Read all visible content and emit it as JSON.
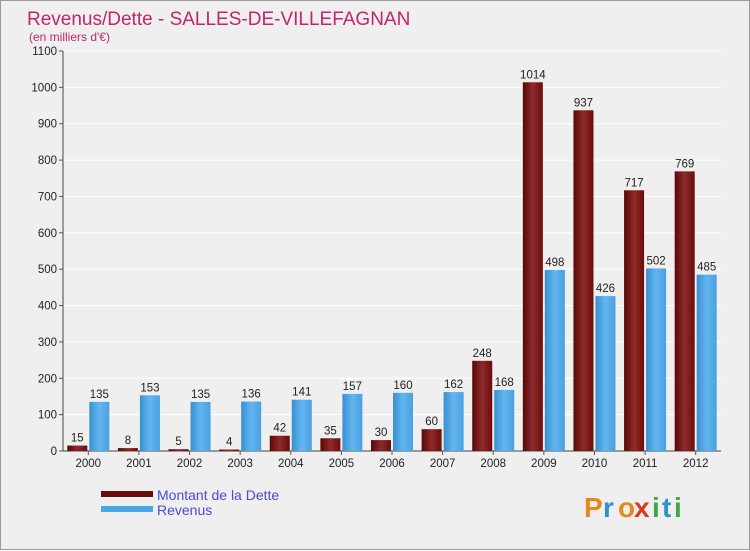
{
  "chart_data": {
    "type": "bar",
    "title": "Revenus/Dette - SALLES-DE-VILLEFAGNAN",
    "subtitle": "(en milliers d'€)",
    "categories": [
      "2000",
      "2001",
      "2002",
      "2003",
      "2004",
      "2005",
      "2006",
      "2007",
      "2008",
      "2009",
      "2010",
      "2011",
      "2012"
    ],
    "series": [
      {
        "name": "Montant de la Dette",
        "color": "#7b0d0d",
        "values": [
          15,
          8,
          5,
          4,
          42,
          35,
          30,
          60,
          248,
          1014,
          937,
          717,
          769
        ]
      },
      {
        "name": "Revenus",
        "color": "#4aa6e6",
        "values": [
          135,
          153,
          135,
          136,
          141,
          157,
          160,
          162,
          168,
          498,
          426,
          502,
          485
        ]
      }
    ],
    "ylim": [
      0,
      1100
    ],
    "yticks": [
      0,
      100,
      200,
      300,
      400,
      500,
      600,
      700,
      800,
      900,
      1000,
      1100
    ],
    "grid": true,
    "legend": "bottom-left"
  },
  "logo": {
    "letters": [
      "P",
      "r",
      "o",
      "x",
      "i",
      "t",
      "i"
    ]
  }
}
